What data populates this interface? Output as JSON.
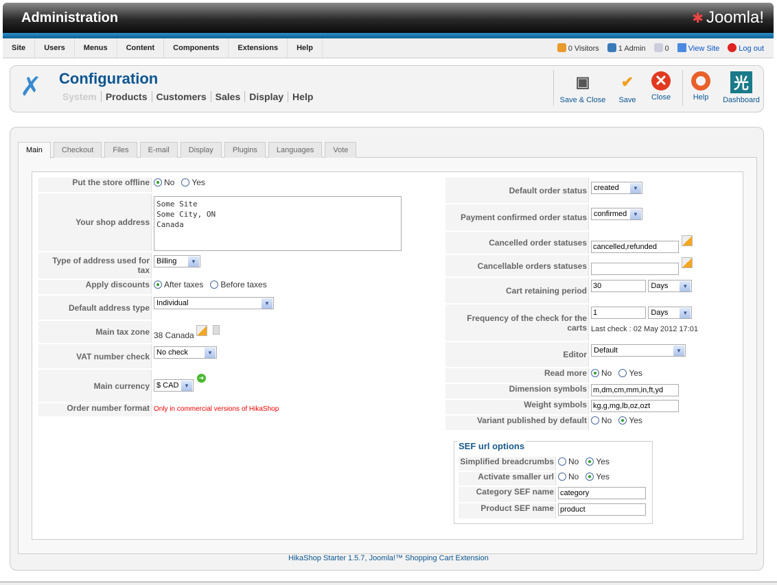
{
  "header": {
    "title": "Administration",
    "logo_text": "Joomla!"
  },
  "menu": [
    "Site",
    "Users",
    "Menus",
    "Content",
    "Components",
    "Extensions",
    "Help"
  ],
  "status": {
    "visitors": "0 Visitors",
    "admin": "1 Admin",
    "messages": "0",
    "view_site": "View Site",
    "logout": "Log out"
  },
  "toolbar": {
    "title": "Configuration",
    "submenu": [
      "System",
      "Products",
      "Customers",
      "Sales",
      "Display",
      "Help"
    ],
    "buttons": {
      "save_close": "Save & Close",
      "save": "Save",
      "close": "Close",
      "help": "Help",
      "dashboard": "Dashboard"
    }
  },
  "tabs": [
    "Main",
    "Checkout",
    "Files",
    "E-mail",
    "Display",
    "Plugins",
    "Languages",
    "Vote"
  ],
  "left": {
    "offline": {
      "label": "Put the store offline",
      "options": [
        "No",
        "Yes"
      ],
      "selected": "No"
    },
    "address": {
      "label": "Your shop address",
      "value": "Some Site\nSome City, ON\nCanada"
    },
    "tax_address": {
      "label": "Type of address used for tax",
      "value": "Billing"
    },
    "discounts": {
      "label": "Apply discounts",
      "options": [
        "After taxes",
        "Before taxes"
      ],
      "selected": "After taxes"
    },
    "address_type": {
      "label": "Default address type",
      "value": "Individual"
    },
    "tax_zone": {
      "label": "Main tax zone",
      "value": "38 Canada"
    },
    "vat": {
      "label": "VAT number check",
      "value": "No check"
    },
    "currency": {
      "label": "Main currency",
      "value": "$ CAD"
    },
    "order_format": {
      "label": "Order number format",
      "value": "Only in commercial versions of HikaShop"
    }
  },
  "right": {
    "default_status": {
      "label": "Default order status",
      "value": "created"
    },
    "payment_status": {
      "label": "Payment confirmed order status",
      "value": "confirmed"
    },
    "cancelled": {
      "label": "Cancelled order statuses",
      "value": "cancelled,refunded"
    },
    "cancellable": {
      "label": "Cancellable orders statuses",
      "value": ""
    },
    "cart_period": {
      "label": "Cart retaining period",
      "value": "30",
      "unit": "Days"
    },
    "cart_check": {
      "label": "Frequency of the check for the carts",
      "value": "1",
      "unit": "Days",
      "last_check": "Last check : 02 May 2012 17:01"
    },
    "editor": {
      "label": "Editor",
      "value": "Default"
    },
    "read_more": {
      "label": "Read more",
      "options": [
        "No",
        "Yes"
      ],
      "selected": "No"
    },
    "dimension": {
      "label": "Dimension symbols",
      "value": "m,dm,cm,mm,in,ft,yd"
    },
    "weight": {
      "label": "Weight symbols",
      "value": "kg,g,mg,lb,oz,ozt"
    },
    "variant": {
      "label": "Variant published by default",
      "options": [
        "No",
        "Yes"
      ],
      "selected": "Yes"
    }
  },
  "sef": {
    "legend": "SEF url options",
    "breadcrumbs": {
      "label": "Simplified breadcrumbs",
      "options": [
        "No",
        "Yes"
      ],
      "selected": "Yes"
    },
    "smaller_url": {
      "label": "Activate smaller url",
      "options": [
        "No",
        "Yes"
      ],
      "selected": "Yes"
    },
    "category": {
      "label": "Category SEF name",
      "value": "category"
    },
    "product": {
      "label": "Product SEF name",
      "value": "product"
    }
  },
  "footer": "HikaShop Starter 1.5.7, Joomla!™ Shopping Cart Extension"
}
